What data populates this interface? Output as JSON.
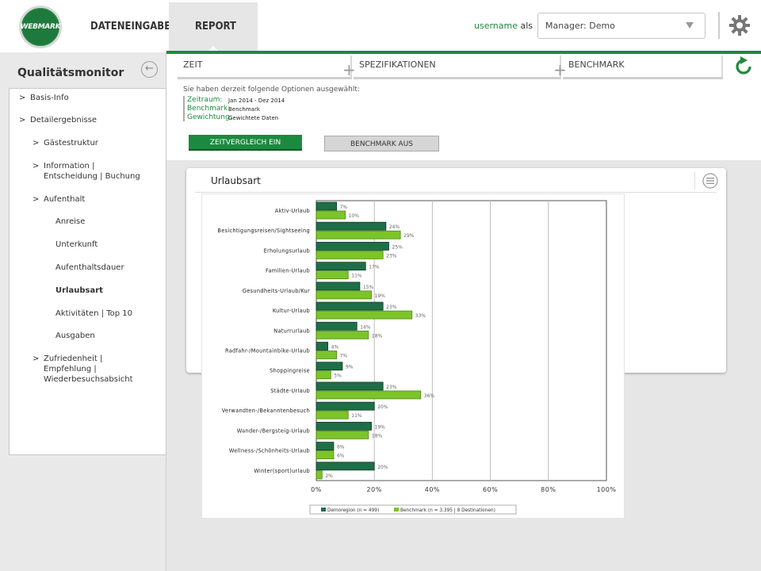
{
  "header": {
    "logo_text": "WEBMARK",
    "tabs": [
      {
        "label": "DATENEINGABE",
        "active": false
      },
      {
        "label": "REPORT",
        "active": true
      }
    ],
    "username_label": "username",
    "username_suffix": "als",
    "manager_select_value": "Manager: Demo",
    "accent_color": "#1f8a3d"
  },
  "sidebar": {
    "title": "Qualitätsmonitor",
    "back_icon": "arrow-left-circle-icon",
    "items": [
      {
        "label": "Basis-Info",
        "arrow": ">"
      },
      {
        "label": "Detailergebnisse",
        "arrow": ">"
      },
      {
        "label": "Gästestruktur",
        "arrow": ">"
      },
      {
        "label": "Information |",
        "label2": "Entscheidung | Buchung",
        "arrow": ">"
      },
      {
        "label": "Aufenthalt",
        "arrow": ">"
      },
      {
        "label": "Anreise"
      },
      {
        "label": "Unterkunft"
      },
      {
        "label": "Aufenthaltsdauer"
      },
      {
        "label": "Urlaubsart",
        "active": true
      },
      {
        "label": "Aktivitäten | Top 10"
      },
      {
        "label": "Ausgaben"
      },
      {
        "label": "Zufriedenheit |",
        "label2": "Empfehlung |",
        "label3": "Wiederbesuchsabsicht",
        "arrow": ">"
      }
    ]
  },
  "options": {
    "tabs": [
      "ZEIT",
      "SPEZIFIKATIONEN",
      "BENCHMARK"
    ],
    "intro": "Sie haben derzeit folgende Optionen ausgewählt:",
    "rows": [
      {
        "key": "Zeitraum:",
        "value": "Jan 2014 - Dez 2014"
      },
      {
        "key": "Benchmark:",
        "value": "Benchmark"
      },
      {
        "key": "Gewichtung:",
        "value": "Gewichtete Daten"
      }
    ],
    "btn_zeit": "ZEITVERGLEICH EIN",
    "btn_benchmark": "BENCHMARK AUS"
  },
  "card": {
    "title": "Urlaubsart"
  },
  "chart_data": {
    "type": "bar",
    "orientation": "horizontal",
    "categories": [
      "Aktiv-Urlaub",
      "Besichtigungsreisen/Sightseeing",
      "Erholungsurlaub",
      "Familien-Urlaub",
      "Gesundheits-Urlaub/Kur",
      "Kultur-Urlaub",
      "Naturrurlaub",
      "Radfahr-/Mountainbike-Urlaub",
      "Shoppingreise",
      "Städte-Urlaub",
      "Verwandten-/Bekanntenbesuch",
      "Wander-/Bergsteig-Urlaub",
      "Wellness-/Schönheits-Urlaub",
      "Winter(sport)urlaub"
    ],
    "series": [
      {
        "name": "Demoregion (n = 499)",
        "color": "#1e6e47",
        "values": [
          7,
          24,
          25,
          17,
          15,
          23,
          14,
          4,
          9,
          23,
          20,
          19,
          6,
          20
        ]
      },
      {
        "name": "Benchmark (n = 3.395 | 8 Destinationen)",
        "color": "#7cc42a",
        "values": [
          10,
          29,
          23,
          11,
          19,
          33,
          18,
          7,
          5,
          36,
          11,
          18,
          6,
          2
        ]
      }
    ],
    "value_labels": [
      [
        "7%",
        "24%",
        "25%",
        "17%",
        "15%",
        "23%",
        "14%",
        "4%",
        "9%",
        "23%",
        "20%",
        "19%",
        "6%",
        "20%"
      ],
      [
        "10%",
        "29%",
        "23%",
        "11%",
        "19%",
        "33%",
        "18%",
        "7%",
        "5%",
        "36%",
        "11%",
        "18%",
        "6%",
        "2%"
      ]
    ],
    "xlim": [
      0,
      100
    ],
    "xticks": [
      "0%",
      "20%",
      "40%",
      "60%",
      "80%",
      "100%"
    ],
    "grid": true,
    "legend": "bottom"
  }
}
